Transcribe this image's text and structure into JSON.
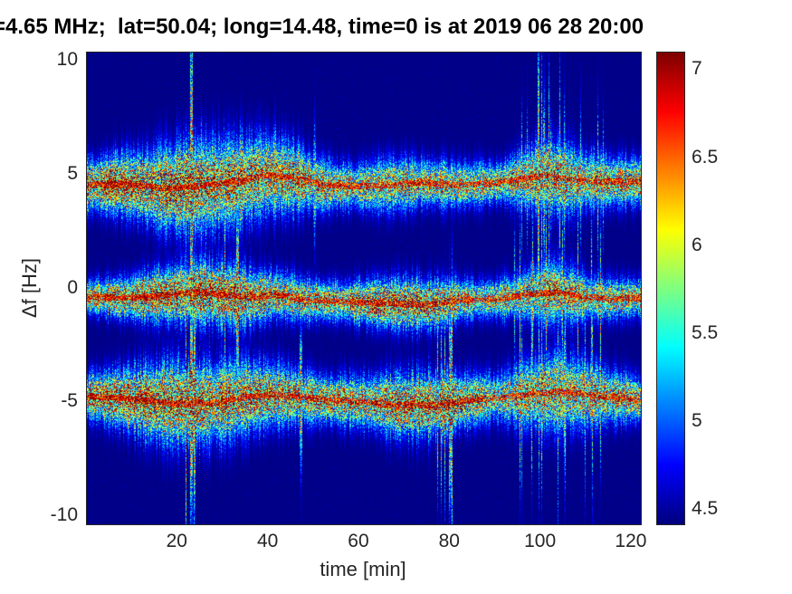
{
  "chart_data": {
    "type": "heatmap",
    "title": "=4.65 MHz;  lat=50.04; long=14.48, time=0 is at 2019 06 28 20:00",
    "xlabel": "time [min]",
    "ylabel": "Δf [Hz]",
    "x_range_min": [
      0,
      122
    ],
    "y_range_hz": [
      -10.35,
      10.35
    ],
    "xticks": [
      20,
      40,
      60,
      80,
      100,
      120
    ],
    "yticks": [
      10,
      5,
      0,
      -5,
      -10
    ],
    "colormap": "jet",
    "grid": false,
    "legend": "none",
    "colorbar": {
      "min": 4.42,
      "max": 7.1,
      "ticks": [
        7,
        6.5,
        6,
        5.5,
        5,
        4.5
      ],
      "position": "right"
    },
    "background_value": 4.45,
    "bands": [
      {
        "name": "upper-band",
        "center_hz": 4.75,
        "wander": [
          [
            0,
            -0.2
          ],
          [
            8,
            -0.15
          ],
          [
            18,
            -0.35
          ],
          [
            26,
            -0.2
          ],
          [
            34,
            0.0
          ],
          [
            40,
            0.25
          ],
          [
            46,
            0.1
          ],
          [
            52,
            -0.2
          ],
          [
            58,
            -0.25
          ],
          [
            66,
            -0.2
          ],
          [
            74,
            -0.1
          ],
          [
            82,
            -0.2
          ],
          [
            90,
            -0.1
          ],
          [
            97,
            0.1
          ],
          [
            101,
            0.25
          ],
          [
            106,
            0.05
          ],
          [
            112,
            -0.05
          ],
          [
            122,
            -0.05
          ]
        ],
        "sigma": [
          [
            0,
            0.6
          ],
          [
            10,
            0.8
          ],
          [
            18,
            1.05
          ],
          [
            27,
            1.2
          ],
          [
            36,
            1.05
          ],
          [
            43,
            0.95
          ],
          [
            50,
            0.65
          ],
          [
            58,
            0.55
          ],
          [
            66,
            0.65
          ],
          [
            74,
            0.6
          ],
          [
            82,
            0.55
          ],
          [
            90,
            0.5
          ],
          [
            98,
            0.8
          ],
          [
            104,
            0.9
          ],
          [
            110,
            0.75
          ],
          [
            116,
            0.6
          ],
          [
            122,
            0.6
          ]
        ],
        "strength": [
          [
            0,
            1.0
          ],
          [
            15,
            1.0
          ],
          [
            30,
            0.95
          ],
          [
            45,
            0.85
          ],
          [
            60,
            0.8
          ],
          [
            75,
            0.8
          ],
          [
            90,
            0.75
          ],
          [
            100,
            0.9
          ],
          [
            110,
            0.8
          ],
          [
            122,
            0.85
          ]
        ],
        "spiky": [
          [
            94,
            114,
            0.1
          ],
          [
            40,
            50,
            0.03
          ]
        ],
        "spikes": [
          {
            "t": 23,
            "m": 3.5
          },
          {
            "t": 50,
            "m": 2.5
          }
        ]
      },
      {
        "name": "middle-band",
        "center_hz": -0.45,
        "wander": [
          [
            0,
            0.1
          ],
          [
            8,
            0.05
          ],
          [
            16,
            0.15
          ],
          [
            24,
            0.3
          ],
          [
            30,
            0.2
          ],
          [
            36,
            0.05
          ],
          [
            42,
            0.2
          ],
          [
            48,
            -0.05
          ],
          [
            55,
            -0.1
          ],
          [
            62,
            -0.15
          ],
          [
            68,
            -0.2
          ],
          [
            75,
            -0.25
          ],
          [
            82,
            -0.05
          ],
          [
            90,
            0.0
          ],
          [
            97,
            0.2
          ],
          [
            103,
            0.3
          ],
          [
            109,
            0.1
          ],
          [
            116,
            0.0
          ],
          [
            122,
            0.05
          ]
        ],
        "sigma": [
          [
            0,
            0.4
          ],
          [
            10,
            0.55
          ],
          [
            18,
            0.7
          ],
          [
            26,
            0.8
          ],
          [
            34,
            0.75
          ],
          [
            42,
            0.6
          ],
          [
            50,
            0.5
          ],
          [
            58,
            0.5
          ],
          [
            64,
            0.6
          ],
          [
            72,
            0.65
          ],
          [
            80,
            0.55
          ],
          [
            88,
            0.45
          ],
          [
            96,
            0.6
          ],
          [
            102,
            0.85
          ],
          [
            108,
            0.65
          ],
          [
            115,
            0.5
          ],
          [
            122,
            0.45
          ]
        ],
        "strength": [
          [
            0,
            0.85
          ],
          [
            12,
            0.95
          ],
          [
            25,
            1.0
          ],
          [
            40,
            0.9
          ],
          [
            55,
            0.8
          ],
          [
            65,
            0.95
          ],
          [
            75,
            0.95
          ],
          [
            85,
            0.7
          ],
          [
            95,
            0.75
          ],
          [
            103,
            0.85
          ],
          [
            112,
            0.75
          ],
          [
            122,
            0.8
          ]
        ],
        "spiky": [
          [
            94,
            114,
            0.1
          ],
          [
            28,
            40,
            0.03
          ]
        ],
        "spikes": [
          {
            "t": 33,
            "m": 3.0
          }
        ]
      },
      {
        "name": "lower-band",
        "center_hz": -4.85,
        "wander": [
          [
            0,
            0.15
          ],
          [
            8,
            0.05
          ],
          [
            14,
            -0.1
          ],
          [
            21,
            -0.2
          ],
          [
            28,
            -0.15
          ],
          [
            35,
            0.1
          ],
          [
            41,
            0.2
          ],
          [
            47,
            0.1
          ],
          [
            54,
            -0.05
          ],
          [
            60,
            -0.1
          ],
          [
            68,
            -0.25
          ],
          [
            76,
            -0.25
          ],
          [
            84,
            -0.05
          ],
          [
            92,
            0.1
          ],
          [
            99,
            0.25
          ],
          [
            104,
            0.35
          ],
          [
            110,
            0.2
          ],
          [
            116,
            0.1
          ],
          [
            122,
            0.0
          ]
        ],
        "sigma": [
          [
            0,
            0.55
          ],
          [
            10,
            0.8
          ],
          [
            18,
            1.0
          ],
          [
            26,
            1.05
          ],
          [
            34,
            0.95
          ],
          [
            42,
            0.8
          ],
          [
            50,
            0.6
          ],
          [
            58,
            0.6
          ],
          [
            66,
            0.75
          ],
          [
            74,
            0.85
          ],
          [
            82,
            0.7
          ],
          [
            90,
            0.6
          ],
          [
            97,
            0.8
          ],
          [
            104,
            1.0
          ],
          [
            110,
            0.8
          ],
          [
            116,
            0.65
          ],
          [
            122,
            0.55
          ]
        ],
        "strength": [
          [
            0,
            0.95
          ],
          [
            15,
            1.0
          ],
          [
            30,
            0.95
          ],
          [
            45,
            0.85
          ],
          [
            60,
            0.85
          ],
          [
            70,
            0.95
          ],
          [
            80,
            1.0
          ],
          [
            90,
            0.7
          ],
          [
            100,
            0.85
          ],
          [
            110,
            0.8
          ],
          [
            122,
            0.8
          ]
        ],
        "spiky": [
          [
            94,
            114,
            0.12
          ],
          [
            18,
            30,
            0.04
          ],
          [
            76,
            84,
            0.06
          ]
        ],
        "spikes": [
          {
            "t": 23,
            "m": 4.0
          },
          {
            "t": 80,
            "m": 4.5
          },
          {
            "t": 47,
            "m": 2.5
          }
        ]
      }
    ]
  },
  "colors": {
    "axis_text": "#262626",
    "title_text": "#000000",
    "figure_background": "#ffffff",
    "plot_background_deep_blue": "#00008b"
  }
}
